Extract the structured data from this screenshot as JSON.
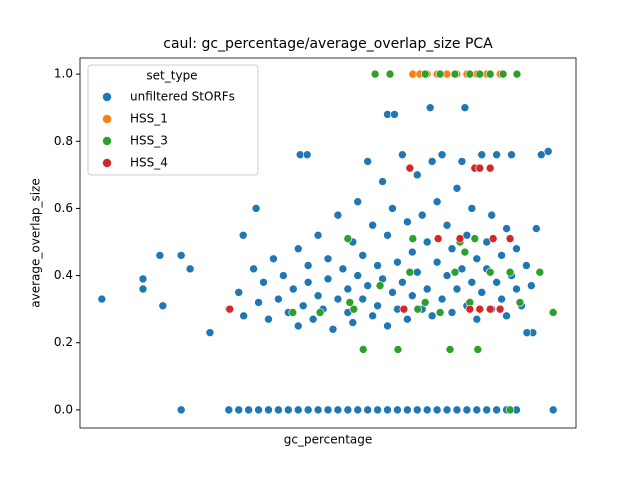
{
  "chart_data": {
    "type": "scatter",
    "title": "caul: gc_percentage/average_overlap_size PCA",
    "x_label": "gc_percentage",
    "y_label": "average_overlap_size",
    "xlim": [
      0,
      100
    ],
    "ylim": [
      -0.054,
      1.048
    ],
    "yticks": [
      {
        "value": 0,
        "label": "0.0"
      },
      {
        "value": 0.2,
        "label": "0.2"
      },
      {
        "value": 0.4,
        "label": "0.4"
      },
      {
        "value": 0.6,
        "label": "0.6"
      },
      {
        "value": 0.8,
        "label": "0.8"
      },
      {
        "value": 1,
        "label": "1.0"
      }
    ],
    "legend_title": "set_type",
    "legend_position": "upper left",
    "series": [
      {
        "name": "unfiltered StORFs",
        "color": "#1f77b4",
        "x": [
          20.4,
          30,
          32,
          34,
          36,
          38,
          40,
          42,
          44,
          46,
          48,
          50,
          52,
          54,
          56,
          58,
          60,
          62,
          64,
          66,
          68,
          70,
          72,
          74,
          76,
          78,
          80,
          82,
          84,
          86,
          88,
          95.4,
          4.4,
          12.7,
          12.7,
          16.1,
          16.7,
          20.4,
          22.2,
          26.2,
          32.9,
          35.5,
          44.4,
          45.8,
          62,
          63.4,
          77.6,
          70.6,
          94.4,
          91.3,
          90.1,
          30,
          32,
          33,
          35,
          36,
          37,
          38,
          39,
          40,
          41,
          42,
          43,
          44,
          44,
          45,
          46,
          46,
          47,
          48,
          48,
          49,
          50,
          50,
          51,
          52,
          52,
          53,
          54,
          54,
          55,
          55,
          56,
          56,
          57,
          57,
          58,
          58,
          59,
          59,
          60,
          60,
          61,
          61,
          62,
          62,
          63,
          63,
          64,
          64,
          65,
          65,
          66,
          66,
          67,
          67,
          68,
          68,
          69,
          69,
          70,
          70,
          71,
          71,
          72,
          72,
          73,
          73,
          74,
          74,
          75,
          75,
          76,
          76,
          77,
          77,
          78,
          78,
          79,
          79,
          80,
          80,
          81,
          81,
          82,
          82,
          83,
          83,
          84,
          84,
          85,
          85,
          86,
          86,
          87,
          87,
          88,
          88,
          89,
          90,
          91,
          92,
          93
        ],
        "values": [
          0,
          0,
          0,
          0,
          0,
          0,
          0,
          0,
          0,
          0,
          0,
          0,
          0,
          0,
          0,
          0,
          0,
          0,
          0,
          0,
          0,
          0,
          0,
          0,
          0,
          0,
          0,
          0,
          0,
          0,
          0,
          0,
          0.33,
          0.39,
          0.36,
          0.46,
          0.31,
          0.46,
          0.42,
          0.23,
          0.52,
          0.6,
          0.76,
          0.76,
          0.88,
          0.88,
          0.9,
          0.9,
          0.77,
          0.23,
          0.23,
          0.3,
          0.35,
          0.28,
          0.42,
          0.32,
          0.38,
          0.27,
          0.45,
          0.33,
          0.4,
          0.29,
          0.36,
          0.48,
          0.25,
          0.31,
          0.43,
          0.38,
          0.27,
          0.52,
          0.34,
          0.3,
          0.45,
          0.39,
          0.24,
          0.58,
          0.33,
          0.42,
          0.36,
          0.29,
          0.5,
          0.26,
          0.62,
          0.4,
          0.33,
          0.46,
          0.74,
          0.37,
          0.28,
          0.55,
          0.43,
          0.31,
          0.68,
          0.39,
          0.25,
          0.52,
          0.35,
          0.6,
          0.44,
          0.3,
          0.76,
          0.38,
          0.56,
          0.27,
          0.47,
          0.34,
          0.7,
          0.41,
          0.3,
          0.58,
          0.36,
          0.5,
          0.74,
          0.28,
          0.44,
          0.62,
          0.33,
          0.76,
          0.4,
          0.55,
          0.29,
          0.48,
          0.66,
          0.36,
          0.42,
          0.74,
          0.31,
          0.52,
          0.38,
          0.6,
          0.45,
          0.27,
          0.76,
          0.35,
          0.5,
          0.42,
          0.3,
          0.58,
          0.38,
          0.76,
          0.46,
          0.33,
          0.54,
          0.28,
          0.4,
          0.76,
          0.36,
          0.48,
          0.31,
          0.43,
          0.37,
          0.54,
          0.76
        ]
      },
      {
        "name": "HSS_1",
        "color": "#ff7f0e",
        "x": [
          67.1,
          68.5,
          70,
          72,
          74,
          76,
          78,
          80,
          82,
          84.7
        ],
        "values": [
          1,
          1,
          1,
          1,
          1,
          1,
          1,
          1,
          1,
          1
        ]
      },
      {
        "name": "HSS_3",
        "color": "#2ca02c",
        "x": [
          59.5,
          62.5,
          69.6,
          72.6,
          75.6,
          78.6,
          80.6,
          82.7,
          85.3,
          88.1,
          54.0,
          55.2,
          57.1,
          60.5,
          64.1,
          66.5,
          67.1,
          69.6,
          72.6,
          74.6,
          75.6,
          76.6,
          77.6,
          78.6,
          80.2,
          82.7,
          84.7,
          86.7,
          88.7,
          92.7,
          95.4,
          42.9,
          48.4,
          86.7,
          54.4,
          68.1,
          79.6
        ],
        "values": [
          1,
          1,
          1,
          1,
          1,
          1,
          1,
          1,
          1,
          1,
          0.51,
          0.3,
          0.18,
          0.37,
          0.18,
          0.41,
          0.51,
          0.32,
          0.29,
          0.18,
          0.41,
          0.5,
          0.47,
          0.32,
          0.18,
          0.41,
          0.3,
          0.41,
          0.32,
          0.41,
          0.29,
          0.29,
          0.29,
          0,
          0.32,
          0.3,
          0.51
        ]
      },
      {
        "name": "HSS_4",
        "color": "#d62728",
        "x": [
          30.2,
          65.3,
          66.5,
          72.2,
          76.6,
          79.6,
          80.6,
          82.7,
          83.3,
          86.7,
          78.6,
          80.6,
          82.7,
          84.7
        ],
        "values": [
          0.3,
          0.3,
          0.72,
          0.51,
          0.51,
          0.72,
          0.72,
          0.72,
          0.51,
          0.51,
          0.3,
          0.3,
          0.3,
          0.3
        ]
      }
    ]
  }
}
